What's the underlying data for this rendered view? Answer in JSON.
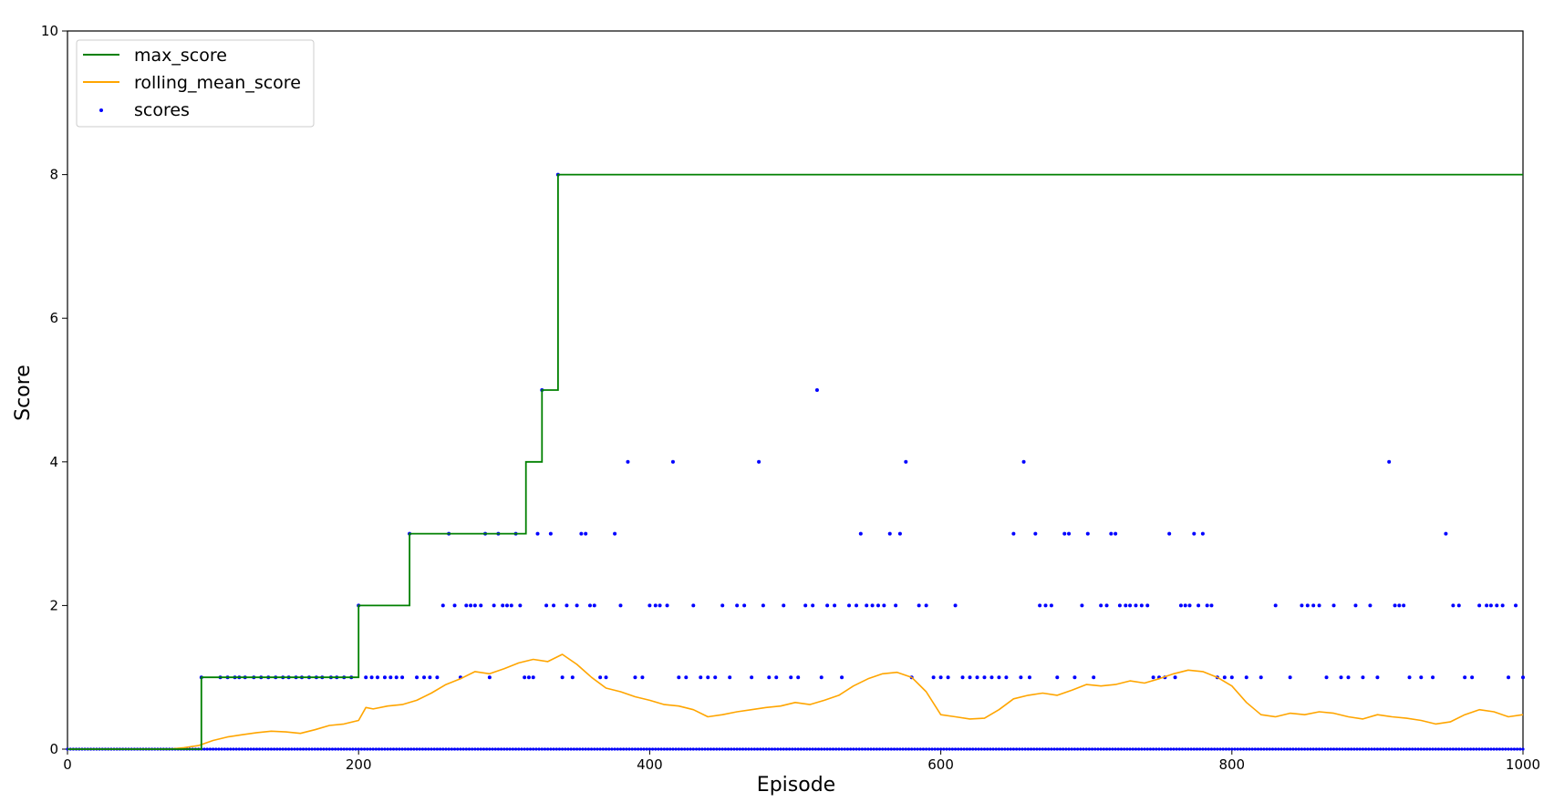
{
  "chart_data": {
    "type": "line",
    "title": "",
    "xlabel": "Episode",
    "ylabel": "Score",
    "xlim": [
      0,
      1000
    ],
    "ylim": [
      0,
      10
    ],
    "xticks": [
      0,
      200,
      400,
      600,
      800,
      1000
    ],
    "yticks": [
      0,
      2,
      4,
      6,
      8,
      10
    ],
    "grid": false,
    "legend_position": "top-left",
    "colors": {
      "max_score": "#008000",
      "rolling_mean_score": "#ffa500",
      "scores": "#0000ff",
      "axes": "#000000"
    },
    "series": [
      {
        "name": "max_score",
        "kind": "step-line",
        "x": [
          0,
          92,
          92,
          200,
          200,
          235,
          235,
          315,
          315,
          326,
          326,
          337,
          337,
          1000
        ],
        "y": [
          0,
          0,
          1,
          1,
          2,
          2,
          3,
          3,
          4,
          4,
          5,
          5,
          8,
          8
        ]
      },
      {
        "name": "rolling_mean_score",
        "kind": "line",
        "x": [
          0,
          70,
          80,
          90,
          100,
          110,
          120,
          130,
          140,
          150,
          160,
          170,
          180,
          190,
          200,
          205,
          210,
          220,
          230,
          240,
          250,
          260,
          270,
          280,
          290,
          300,
          310,
          320,
          330,
          340,
          350,
          360,
          370,
          380,
          390,
          400,
          410,
          420,
          430,
          440,
          450,
          460,
          470,
          480,
          490,
          500,
          510,
          520,
          530,
          540,
          550,
          560,
          570,
          580,
          590,
          600,
          610,
          620,
          630,
          640,
          650,
          660,
          670,
          680,
          690,
          700,
          710,
          720,
          730,
          740,
          750,
          760,
          770,
          780,
          790,
          800,
          810,
          820,
          830,
          840,
          850,
          860,
          870,
          880,
          890,
          900,
          910,
          920,
          930,
          940,
          950,
          960,
          970,
          980,
          990,
          1000
        ],
        "y": [
          0,
          0,
          0.02,
          0.05,
          0.12,
          0.17,
          0.2,
          0.23,
          0.25,
          0.24,
          0.22,
          0.27,
          0.33,
          0.35,
          0.4,
          0.58,
          0.56,
          0.6,
          0.62,
          0.68,
          0.78,
          0.9,
          0.98,
          1.08,
          1.05,
          1.12,
          1.2,
          1.25,
          1.22,
          1.32,
          1.18,
          1.0,
          0.85,
          0.8,
          0.73,
          0.68,
          0.62,
          0.6,
          0.55,
          0.45,
          0.48,
          0.52,
          0.55,
          0.58,
          0.6,
          0.65,
          0.62,
          0.68,
          0.75,
          0.88,
          0.98,
          1.05,
          1.07,
          1.0,
          0.8,
          0.48,
          0.45,
          0.42,
          0.43,
          0.55,
          0.7,
          0.75,
          0.78,
          0.75,
          0.82,
          0.9,
          0.88,
          0.9,
          0.95,
          0.92,
          0.98,
          1.05,
          1.1,
          1.08,
          1.0,
          0.88,
          0.65,
          0.48,
          0.45,
          0.5,
          0.48,
          0.52,
          0.5,
          0.45,
          0.42,
          0.48,
          0.45,
          0.43,
          0.4,
          0.35,
          0.38,
          0.48,
          0.55,
          0.52,
          0.45,
          0.48
        ]
      },
      {
        "name": "scores",
        "kind": "scatter",
        "points": [
          [
            92,
            1
          ],
          [
            105,
            1
          ],
          [
            110,
            1
          ],
          [
            115,
            1
          ],
          [
            118,
            1
          ],
          [
            122,
            1
          ],
          [
            128,
            1
          ],
          [
            133,
            1
          ],
          [
            138,
            1
          ],
          [
            143,
            1
          ],
          [
            148,
            1
          ],
          [
            152,
            1
          ],
          [
            157,
            1
          ],
          [
            161,
            1
          ],
          [
            166,
            1
          ],
          [
            171,
            1
          ],
          [
            175,
            1
          ],
          [
            181,
            1
          ],
          [
            185,
            1
          ],
          [
            190,
            1
          ],
          [
            195,
            1
          ],
          [
            200,
            2
          ],
          [
            205,
            1
          ],
          [
            209,
            1
          ],
          [
            213,
            1
          ],
          [
            218,
            1
          ],
          [
            222,
            1
          ],
          [
            226,
            1
          ],
          [
            230,
            1
          ],
          [
            235,
            3
          ],
          [
            240,
            1
          ],
          [
            245,
            1
          ],
          [
            249,
            1
          ],
          [
            254,
            1
          ],
          [
            258,
            2
          ],
          [
            262,
            3
          ],
          [
            266,
            2
          ],
          [
            270,
            1
          ],
          [
            274,
            2
          ],
          [
            277,
            2
          ],
          [
            280,
            2
          ],
          [
            284,
            2
          ],
          [
            287,
            3
          ],
          [
            290,
            1
          ],
          [
            293,
            2
          ],
          [
            296,
            3
          ],
          [
            299,
            2
          ],
          [
            302,
            2
          ],
          [
            305,
            2
          ],
          [
            308,
            3
          ],
          [
            311,
            2
          ],
          [
            314,
            1
          ],
          [
            317,
            1
          ],
          [
            320,
            1
          ],
          [
            323,
            3
          ],
          [
            326,
            5
          ],
          [
            329,
            2
          ],
          [
            332,
            3
          ],
          [
            334,
            2
          ],
          [
            337,
            8
          ],
          [
            340,
            1
          ],
          [
            343,
            2
          ],
          [
            347,
            1
          ],
          [
            350,
            2
          ],
          [
            353,
            3
          ],
          [
            356,
            3
          ],
          [
            359,
            2
          ],
          [
            362,
            2
          ],
          [
            366,
            1
          ],
          [
            370,
            1
          ],
          [
            376,
            3
          ],
          [
            380,
            2
          ],
          [
            385,
            4
          ],
          [
            390,
            1
          ],
          [
            395,
            1
          ],
          [
            400,
            2
          ],
          [
            404,
            2
          ],
          [
            407,
            2
          ],
          [
            412,
            2
          ],
          [
            416,
            4
          ],
          [
            420,
            1
          ],
          [
            425,
            1
          ],
          [
            430,
            2
          ],
          [
            435,
            1
          ],
          [
            440,
            1
          ],
          [
            445,
            1
          ],
          [
            450,
            2
          ],
          [
            455,
            1
          ],
          [
            460,
            2
          ],
          [
            465,
            2
          ],
          [
            470,
            1
          ],
          [
            475,
            4
          ],
          [
            478,
            2
          ],
          [
            482,
            1
          ],
          [
            487,
            1
          ],
          [
            492,
            2
          ],
          [
            497,
            1
          ],
          [
            502,
            1
          ],
          [
            507,
            2
          ],
          [
            512,
            2
          ],
          [
            515,
            5
          ],
          [
            518,
            1
          ],
          [
            522,
            2
          ],
          [
            527,
            2
          ],
          [
            532,
            1
          ],
          [
            537,
            2
          ],
          [
            542,
            2
          ],
          [
            545,
            3
          ],
          [
            549,
            2
          ],
          [
            553,
            2
          ],
          [
            557,
            2
          ],
          [
            561,
            2
          ],
          [
            565,
            3
          ],
          [
            569,
            2
          ],
          [
            572,
            3
          ],
          [
            576,
            4
          ],
          [
            580,
            1
          ],
          [
            585,
            2
          ],
          [
            590,
            2
          ],
          [
            595,
            1
          ],
          [
            600,
            1
          ],
          [
            605,
            1
          ],
          [
            610,
            2
          ],
          [
            615,
            1
          ],
          [
            620,
            1
          ],
          [
            625,
            1
          ],
          [
            630,
            1
          ],
          [
            635,
            1
          ],
          [
            640,
            1
          ],
          [
            645,
            1
          ],
          [
            650,
            3
          ],
          [
            655,
            1
          ],
          [
            657,
            4
          ],
          [
            661,
            1
          ],
          [
            665,
            3
          ],
          [
            668,
            2
          ],
          [
            672,
            2
          ],
          [
            676,
            2
          ],
          [
            680,
            1
          ],
          [
            685,
            3
          ],
          [
            688,
            3
          ],
          [
            692,
            1
          ],
          [
            697,
            2
          ],
          [
            701,
            3
          ],
          [
            705,
            1
          ],
          [
            710,
            2
          ],
          [
            714,
            2
          ],
          [
            717,
            3
          ],
          [
            720,
            3
          ],
          [
            723,
            2
          ],
          [
            727,
            2
          ],
          [
            730,
            2
          ],
          [
            734,
            2
          ],
          [
            738,
            2
          ],
          [
            742,
            2
          ],
          [
            746,
            1
          ],
          [
            750,
            1
          ],
          [
            754,
            1
          ],
          [
            757,
            3
          ],
          [
            761,
            1
          ],
          [
            765,
            2
          ],
          [
            768,
            2
          ],
          [
            771,
            2
          ],
          [
            774,
            3
          ],
          [
            777,
            2
          ],
          [
            780,
            3
          ],
          [
            783,
            2
          ],
          [
            786,
            2
          ],
          [
            790,
            1
          ],
          [
            795,
            1
          ],
          [
            800,
            1
          ],
          [
            810,
            1
          ],
          [
            820,
            1
          ],
          [
            830,
            2
          ],
          [
            840,
            1
          ],
          [
            848,
            2
          ],
          [
            852,
            2
          ],
          [
            856,
            2
          ],
          [
            860,
            2
          ],
          [
            865,
            1
          ],
          [
            870,
            2
          ],
          [
            875,
            1
          ],
          [
            880,
            1
          ],
          [
            885,
            2
          ],
          [
            890,
            1
          ],
          [
            895,
            2
          ],
          [
            900,
            1
          ],
          [
            908,
            4
          ],
          [
            912,
            2
          ],
          [
            915,
            2
          ],
          [
            918,
            2
          ],
          [
            922,
            1
          ],
          [
            930,
            1
          ],
          [
            938,
            1
          ],
          [
            947,
            3
          ],
          [
            952,
            2
          ],
          [
            956,
            2
          ],
          [
            960,
            1
          ],
          [
            965,
            1
          ],
          [
            970,
            2
          ],
          [
            975,
            2
          ],
          [
            978,
            2
          ],
          [
            982,
            2
          ],
          [
            986,
            2
          ],
          [
            990,
            1
          ],
          [
            995,
            2
          ],
          [
            1000,
            1
          ]
        ],
        "zero_points": "scores of 0 at most episodes from 0 to 1000 (dense row of points along y=0)"
      }
    ]
  }
}
